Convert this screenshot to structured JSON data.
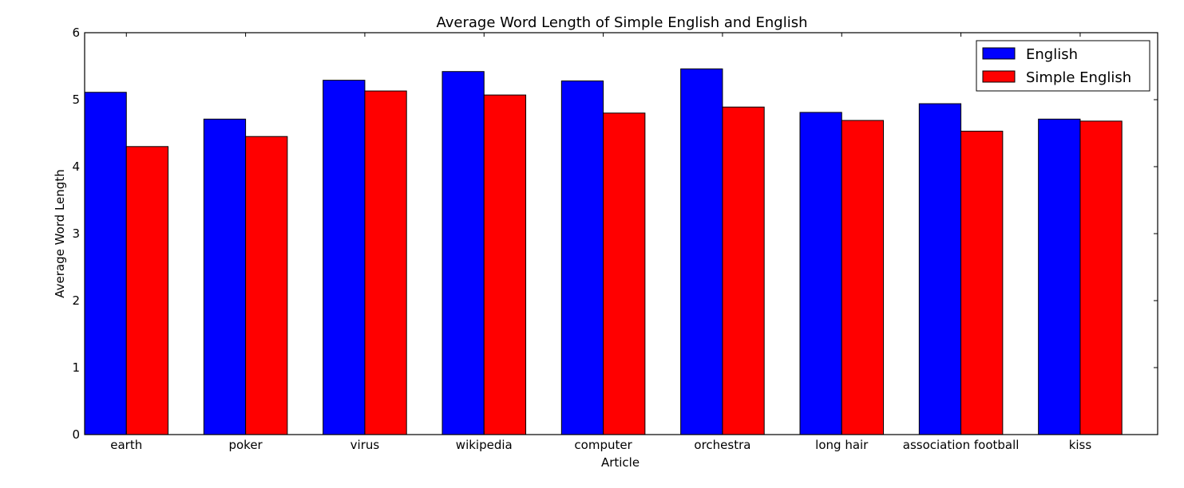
{
  "chart_data": {
    "type": "bar",
    "title": "Average Word Length of Simple English and English",
    "xlabel": "Article",
    "ylabel": "Average Word Length",
    "ylim": [
      0,
      6
    ],
    "yticks": [
      "0",
      "1",
      "2",
      "3",
      "4",
      "5",
      "6"
    ],
    "categories": [
      "earth",
      "poker",
      "virus",
      "wikipedia",
      "computer",
      "orchestra",
      "long hair",
      "association football",
      "kiss"
    ],
    "series": [
      {
        "name": "English",
        "color": "#0000ff",
        "values": [
          5.11,
          4.71,
          5.29,
          5.42,
          5.28,
          5.46,
          4.81,
          4.94,
          4.71
        ]
      },
      {
        "name": "Simple English",
        "color": "#ff0000",
        "values": [
          4.3,
          4.45,
          5.13,
          5.07,
          4.8,
          4.89,
          4.69,
          4.53,
          4.68
        ]
      }
    ],
    "legend_position": "top-right",
    "grid": false
  }
}
